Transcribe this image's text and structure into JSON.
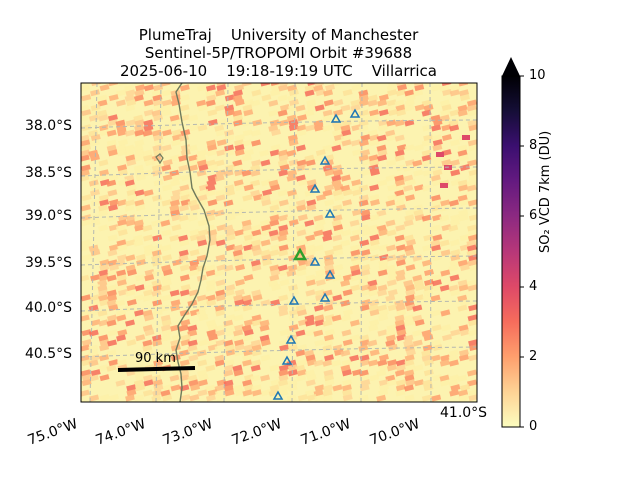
{
  "title": {
    "line1": "PlumeTraj    University of Manchester",
    "line2": "Sentinel-5P/TROPOMI Orbit #39688",
    "line3": "2025-06-10    19:18-19:19 UTC    Villarrica"
  },
  "map": {
    "lat_labels": [
      "38.0°S",
      "38.5°S",
      "39.0°S",
      "39.5°S",
      "40.0°S",
      "40.5°S"
    ],
    "lon_labels": [
      "75.0°W",
      "74.0°W",
      "73.0°W",
      "72.0°W",
      "71.0°W",
      "70.0°W"
    ],
    "corner_label": "41.0°S",
    "scale_bar": "90 km",
    "volcano_markers": "blue triangle outlines",
    "target_marker": "green triangle (Villarrica)",
    "coastline_color": "#6f7a5c",
    "grid": "dashed light grey"
  },
  "colorbar": {
    "label": "SO₂ VCD 7km (DU)",
    "ticks": [
      "0",
      "2",
      "4",
      "6",
      "8",
      "10"
    ],
    "colormap": "magma_r",
    "extend": "max"
  },
  "colors": {
    "background_low": "#fcfdbf",
    "mid": "#fe9f6d",
    "high": "#de4968",
    "target": "#2ca02c",
    "volcano": "#1f77b4"
  }
}
